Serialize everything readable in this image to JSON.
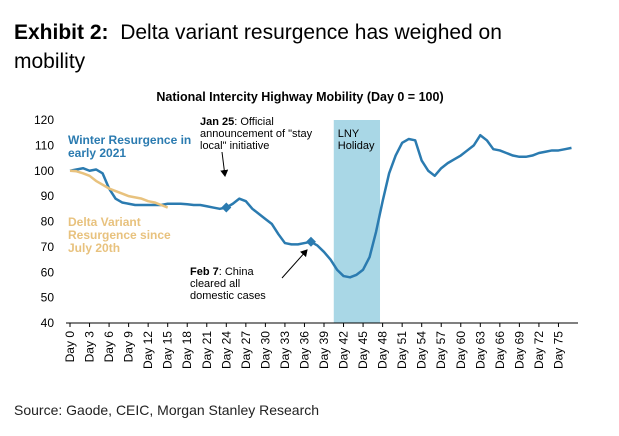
{
  "header": {
    "label": "Exhibit 2:",
    "title": "Delta variant resurgence has weighed on mobility"
  },
  "chart_data": {
    "type": "line",
    "title": "National Intercity Highway Mobility (Day 0 = 100)",
    "x": [
      0,
      1,
      2,
      3,
      4,
      5,
      6,
      7,
      8,
      9,
      10,
      11,
      12,
      13,
      14,
      15,
      16,
      17,
      18,
      19,
      20,
      21,
      22,
      23,
      24,
      25,
      26,
      27,
      28,
      29,
      30,
      31,
      32,
      33,
      34,
      35,
      36,
      37,
      38,
      39,
      40,
      41,
      42,
      43,
      44,
      45,
      46,
      47,
      48,
      49,
      50,
      51,
      52,
      53,
      54,
      55,
      56,
      57,
      58,
      59,
      60,
      61,
      62,
      63,
      64,
      65,
      66,
      67,
      68,
      69,
      70,
      71,
      72,
      73,
      74,
      75,
      76,
      77
    ],
    "series": [
      {
        "name": "Winter Resurgence in early 2021",
        "color": "#2b7bb0",
        "values": [
          100,
          100.5,
          101,
          100,
          100.5,
          99,
          93,
          89,
          87.5,
          87,
          86.5,
          86.5,
          86.5,
          86.5,
          86.5,
          87,
          87,
          87,
          86.8,
          86.5,
          86.5,
          86,
          85.5,
          85,
          85.5,
          87,
          89,
          88,
          85,
          83,
          81,
          79,
          75,
          71.5,
          71,
          71,
          71.5,
          72,
          70.5,
          68,
          65,
          61,
          58.5,
          58,
          59,
          61,
          66,
          76,
          88,
          99,
          106,
          111,
          112.5,
          112,
          104,
          100,
          98,
          101,
          103,
          104.5,
          106,
          108,
          110,
          114,
          112,
          108.5,
          108,
          107,
          106,
          105.5,
          105.5,
          106,
          107,
          107.5,
          108,
          108,
          108.5,
          109
        ]
      },
      {
        "name": "Delta Variant Resurgence since July 20th",
        "color": "#e8c27e",
        "values": [
          100,
          99.8,
          99,
          98,
          96,
          94.5,
          93,
          92,
          91,
          90,
          89.5,
          89,
          88,
          87.5,
          86.5,
          85.5,
          null,
          null,
          null,
          null,
          null,
          null,
          null,
          null,
          null,
          null,
          null,
          null,
          null,
          null,
          null,
          null,
          null,
          null,
          null,
          null,
          null,
          null,
          null,
          null,
          null,
          null,
          null,
          null,
          null,
          null,
          null,
          null,
          null,
          null,
          null,
          null,
          null,
          null,
          null,
          null,
          null,
          null,
          null,
          null,
          null,
          null,
          null,
          null,
          null,
          null,
          null,
          null,
          null,
          null,
          null,
          null,
          null,
          null,
          null,
          null,
          null,
          null
        ]
      }
    ],
    "marker_x": [
      24,
      37
    ],
    "xlim": [
      0,
      78
    ],
    "xticks": [
      {
        "value": 0,
        "label": "Day 0"
      },
      {
        "value": 3,
        "label": "Day 3"
      },
      {
        "value": 6,
        "label": "Day 6"
      },
      {
        "value": 9,
        "label": "Day 9"
      },
      {
        "value": 12,
        "label": "Day 12"
      },
      {
        "value": 15,
        "label": "Day 15"
      },
      {
        "value": 18,
        "label": "Day 18"
      },
      {
        "value": 21,
        "label": "Day 21"
      },
      {
        "value": 24,
        "label": "Day 24"
      },
      {
        "value": 27,
        "label": "Day 27"
      },
      {
        "value": 30,
        "label": "Day 30"
      },
      {
        "value": 33,
        "label": "Day 33"
      },
      {
        "value": 36,
        "label": "Day 36"
      },
      {
        "value": 39,
        "label": "Day 39"
      },
      {
        "value": 42,
        "label": "Day 42"
      },
      {
        "value": 45,
        "label": "Day 45"
      },
      {
        "value": 48,
        "label": "Day 48"
      },
      {
        "value": 51,
        "label": "Day 51"
      },
      {
        "value": 54,
        "label": "Day 54"
      },
      {
        "value": 57,
        "label": "Day 57"
      },
      {
        "value": 60,
        "label": "Day 60"
      },
      {
        "value": 63,
        "label": "Day 63"
      },
      {
        "value": 66,
        "label": "Day 66"
      },
      {
        "value": 69,
        "label": "Day 69"
      },
      {
        "value": 72,
        "label": "Day 72"
      },
      {
        "value": 75,
        "label": "Day 75"
      }
    ],
    "ylim": [
      40,
      120
    ],
    "yticks": [
      40,
      50,
      60,
      70,
      80,
      90,
      100,
      110,
      120
    ],
    "shaded": {
      "x": [
        40.5,
        47.6
      ],
      "label": "LNY Holiday",
      "color": "#a9d7e6"
    },
    "annotations": [
      {
        "bold": "Jan 25",
        "text": ": Official announcement of \"stay local\" initiative"
      },
      {
        "bold": "Feb 7",
        "text": ": China cleared all domestic cases"
      }
    ]
  },
  "source": "Source: Gaode, CEIC, Morgan Stanley Research"
}
